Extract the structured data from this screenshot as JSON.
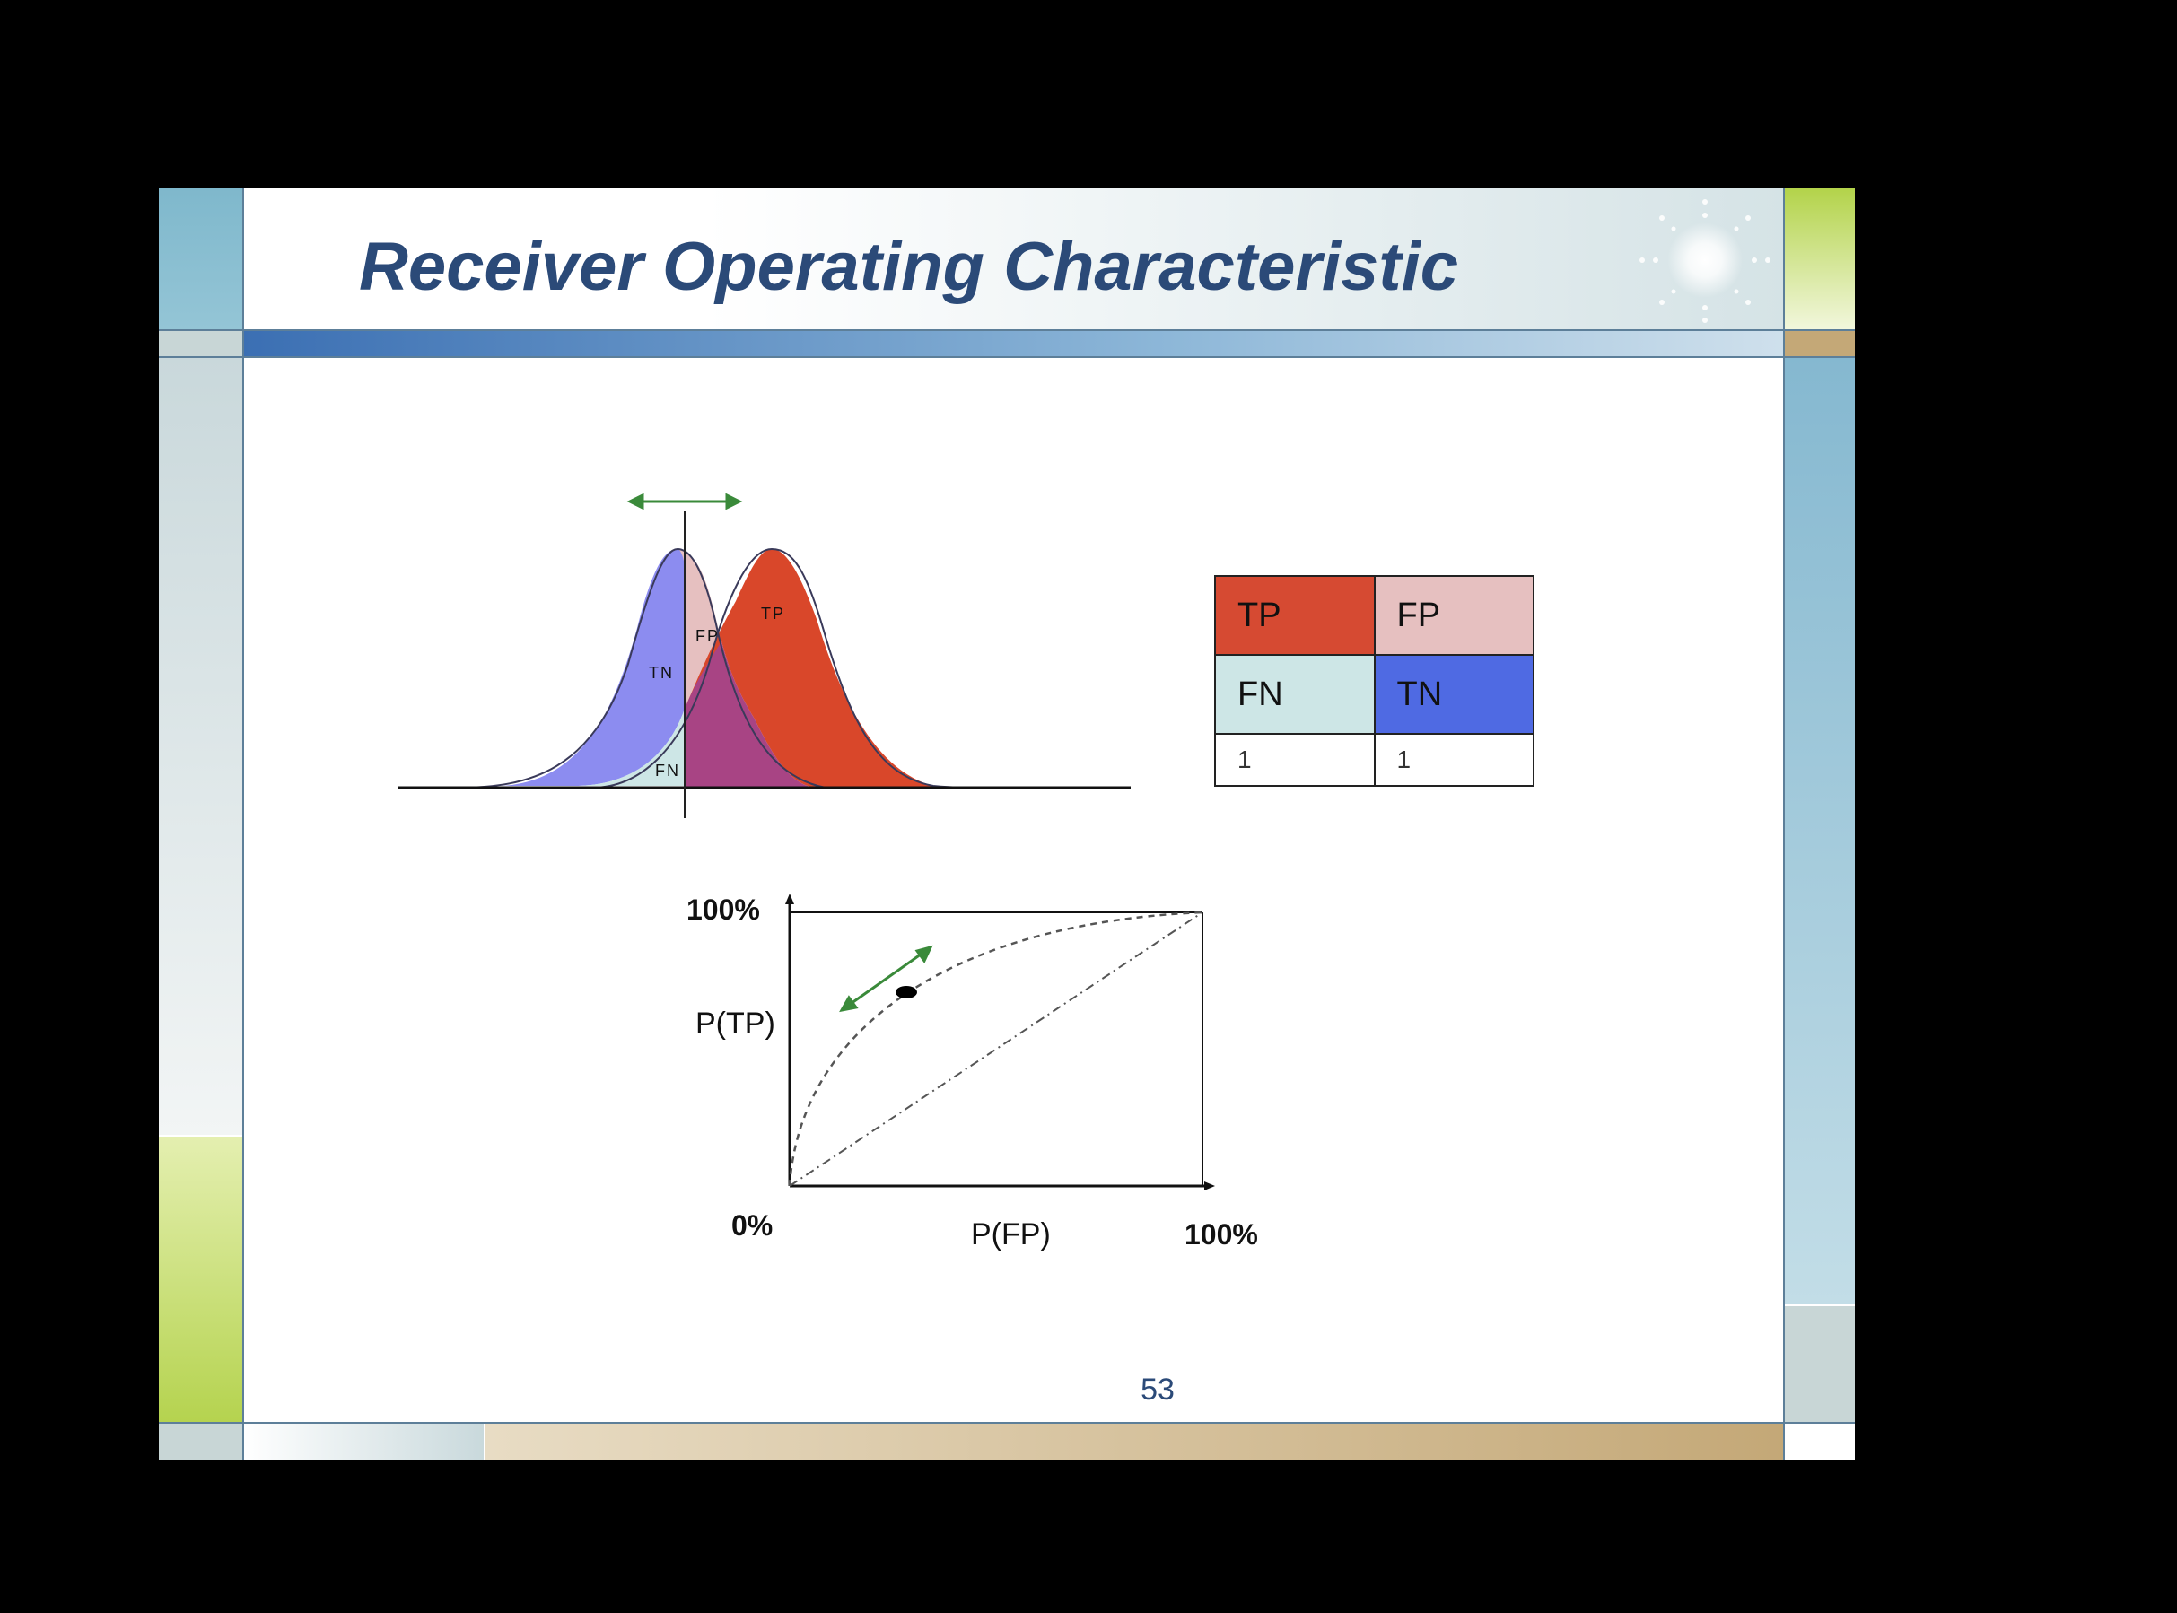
{
  "slide": {
    "title": "Receiver Operating Characteristic",
    "page_number": "53"
  },
  "distribution_diagram": {
    "region_labels": [
      "TN",
      "FP",
      "TP",
      "FN"
    ],
    "colors": {
      "negative": "#8c8cf0",
      "positive": "#d9472a",
      "overlap": "#a84484",
      "fp_area": "#e6c0c0",
      "fn_area": "#cde6e6",
      "arrow": "#3a8a3a"
    }
  },
  "confusion_table": {
    "rows": [
      [
        {
          "text": "TP",
          "color": "#d64a32"
        },
        {
          "text": "FP",
          "color": "#e6c0c0"
        }
      ],
      [
        {
          "text": "FN",
          "color": "#cde6e6"
        },
        {
          "text": "TN",
          "color": "#4f6ae3"
        }
      ],
      [
        {
          "text": "1",
          "color": "#ffffff"
        },
        {
          "text": "1",
          "color": "#ffffff"
        }
      ]
    ]
  },
  "roc_plot": {
    "ylabel": "P(TP)",
    "xlabel": "P(FP)",
    "y_top_label": "100%",
    "origin_label": "0%",
    "x_right_label": "100%"
  }
}
